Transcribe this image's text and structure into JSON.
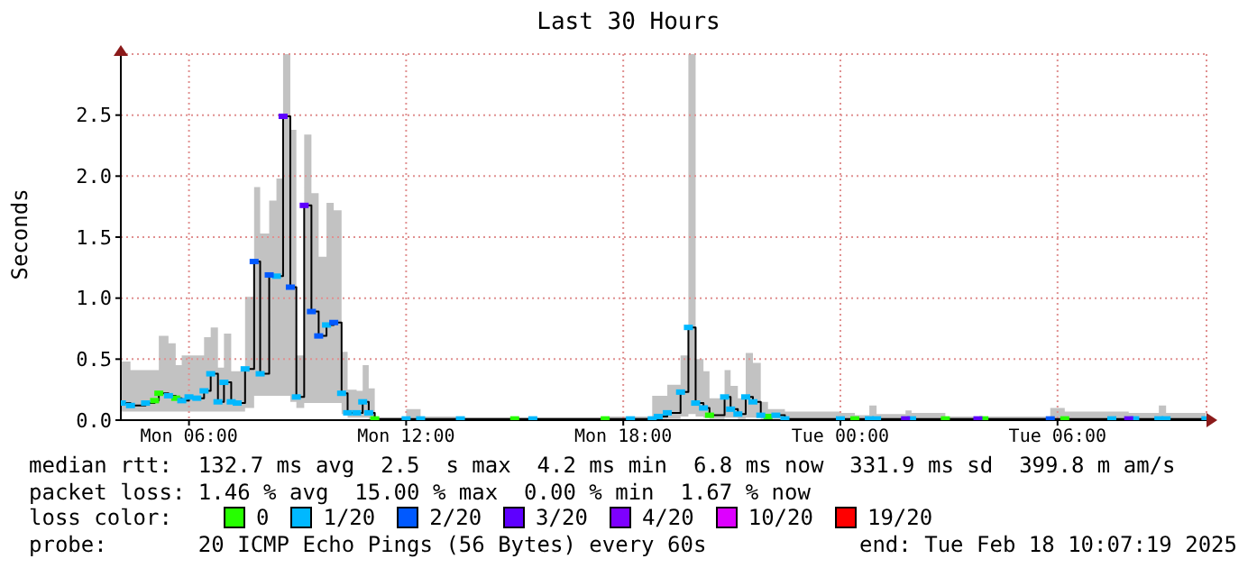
{
  "chart_data": {
    "type": "step",
    "title": "Last 30 Hours",
    "ylabel": "Seconds",
    "x": [
      "2025-02-17T04:08",
      "2025-02-17T04:23",
      "2025-02-17T04:48",
      "2025-02-17T05:03",
      "2025-02-17T05:10",
      "2025-02-17T05:26",
      "2025-02-17T05:38",
      "2025-02-17T05:48",
      "2025-02-17T06:00",
      "2025-02-17T06:13",
      "2025-02-17T06:25",
      "2025-02-17T06:36",
      "2025-02-17T06:48",
      "2025-02-17T06:58",
      "2025-02-17T07:10",
      "2025-02-17T07:20",
      "2025-02-17T07:33",
      "2025-02-17T07:48",
      "2025-02-17T07:58",
      "2025-02-17T08:13",
      "2025-02-17T08:25",
      "2025-02-17T08:36",
      "2025-02-17T08:48",
      "2025-02-17T08:58",
      "2025-02-17T09:11",
      "2025-02-17T09:23",
      "2025-02-17T09:35",
      "2025-02-17T09:48",
      "2025-02-17T10:00",
      "2025-02-17T10:13",
      "2025-02-17T10:23",
      "2025-02-17T10:38",
      "2025-02-17T10:48",
      "2025-02-17T10:58",
      "2025-02-17T11:08",
      "2025-02-17T12:00",
      "2025-02-17T12:24",
      "2025-02-17T13:30",
      "2025-02-17T15:00",
      "2025-02-17T15:30",
      "2025-02-17T17:30",
      "2025-02-17T18:12",
      "2025-02-17T18:48",
      "2025-02-17T18:58",
      "2025-02-17T19:13",
      "2025-02-17T19:35",
      "2025-02-17T19:48",
      "2025-02-17T20:00",
      "2025-02-17T20:13",
      "2025-02-17T20:23",
      "2025-02-17T20:48",
      "2025-02-17T20:58",
      "2025-02-17T21:10",
      "2025-02-17T21:23",
      "2025-02-17T21:35",
      "2025-02-17T21:48",
      "2025-02-17T22:00",
      "2025-02-17T22:13",
      "2025-02-17T22:28",
      "2025-02-18T00:00",
      "2025-02-18T00:24",
      "2025-02-18T00:48",
      "2025-02-18T01:00",
      "2025-02-18T01:48",
      "2025-02-18T01:58",
      "2025-02-18T02:54",
      "2025-02-18T03:48",
      "2025-02-18T03:58",
      "2025-02-18T05:48",
      "2025-02-18T06:12",
      "2025-02-18T07:30",
      "2025-02-18T07:58",
      "2025-02-18T08:08",
      "2025-02-18T08:48",
      "2025-02-18T09:00",
      "2025-02-18T10:06"
    ],
    "series": [
      {
        "color": "#000000",
        "values": [
          0.14,
          0.12,
          0.14,
          0.16,
          0.22,
          0.2,
          0.18,
          0.16,
          0.19,
          0.18,
          0.24,
          0.38,
          0.15,
          0.31,
          0.15,
          0.14,
          0.42,
          1.3,
          0.38,
          1.19,
          1.18,
          2.49,
          1.09,
          0.19,
          1.76,
          0.89,
          0.69,
          0.78,
          0.8,
          0.22,
          0.06,
          0.06,
          0.15,
          0.06,
          0.01,
          0.01,
          0.01,
          0.01,
          0.01,
          0.01,
          0.01,
          0.01,
          0.01,
          0.03,
          0.06,
          0.23,
          0.76,
          0.14,
          0.1,
          0.04,
          0.19,
          0.09,
          0.05,
          0.19,
          0.15,
          0.04,
          0.03,
          0.04,
          0.01,
          0.01,
          0.01,
          0.01,
          0.01,
          0.01,
          0.01,
          0.01,
          0.01,
          0.01,
          0.01,
          0.01,
          0.01,
          0.01,
          0.01,
          0.01,
          0.01,
          0.01
        ],
        "lower": [
          0.07,
          0.07,
          0.07,
          0.07,
          0.07,
          0.07,
          0.07,
          0.07,
          0.07,
          0.07,
          0.07,
          0.07,
          0.07,
          0.07,
          0.07,
          0.07,
          0.1,
          0.2,
          0.2,
          0.2,
          0.2,
          0.2,
          0.15,
          0.1,
          0.14,
          0.14,
          0.14,
          0.14,
          0.14,
          0.05,
          0.02,
          0.02,
          0.02,
          0.01,
          0,
          0,
          0,
          0,
          0,
          0,
          0,
          0,
          0,
          0,
          0.01,
          0.03,
          0.05,
          0.03,
          0.02,
          0.01,
          0.02,
          0.02,
          0.01,
          0.02,
          0.02,
          0.01,
          0.01,
          0.01,
          0,
          0,
          0,
          0,
          0,
          0,
          0,
          0,
          0,
          0,
          0,
          0,
          0,
          0,
          0,
          0,
          0,
          0
        ],
        "upper": [
          0.48,
          0.41,
          0.41,
          0.41,
          0.69,
          0.63,
          0.45,
          0.53,
          0.53,
          0.53,
          0.68,
          0.76,
          0.43,
          0.71,
          0.4,
          0.4,
          1.01,
          1.91,
          1.53,
          1.8,
          1.98,
          3.0,
          2.38,
          0.53,
          2.34,
          1.86,
          1.34,
          1.78,
          1.72,
          0.56,
          0.25,
          0.24,
          0.45,
          0.26,
          0.02,
          0.09,
          0.03,
          0.02,
          0.02,
          0.02,
          0.03,
          0.03,
          0.2,
          0.2,
          0.29,
          0.53,
          3.0,
          0.5,
          0.4,
          0.18,
          0.41,
          0.28,
          0.18,
          0.55,
          0.47,
          0.15,
          0.09,
          0.09,
          0.07,
          0.06,
          0.04,
          0.12,
          0.05,
          0.08,
          0.06,
          0.03,
          0.03,
          0.03,
          0.1,
          0.07,
          0.07,
          0.06,
          0.06,
          0.12,
          0.06,
          0.06
        ]
      },
      {
        "type": "scatter",
        "name": "0",
        "color": "#26ff00",
        "values": [
          null,
          null,
          null,
          0.16,
          0.22,
          null,
          0.18,
          null,
          null,
          null,
          null,
          null,
          null,
          null,
          null,
          null,
          null,
          null,
          null,
          null,
          null,
          null,
          null,
          null,
          null,
          null,
          null,
          null,
          null,
          null,
          null,
          null,
          null,
          null,
          0.01,
          null,
          null,
          null,
          0.01,
          null,
          0.01,
          null,
          null,
          null,
          null,
          null,
          null,
          null,
          null,
          0.04,
          null,
          null,
          null,
          null,
          null,
          null,
          0.03,
          null,
          null,
          null,
          0.01,
          null,
          null,
          null,
          null,
          0.01,
          null,
          0.01,
          null,
          0.01,
          null,
          null,
          null,
          null,
          null,
          null
        ]
      },
      {
        "type": "scatter",
        "name": "1/20",
        "color": "#00b8ff",
        "values": [
          0.14,
          0.12,
          0.14,
          null,
          null,
          0.2,
          null,
          0.16,
          0.19,
          0.18,
          0.24,
          0.38,
          0.15,
          0.31,
          0.15,
          0.14,
          0.42,
          null,
          0.38,
          null,
          1.18,
          null,
          null,
          0.19,
          null,
          null,
          null,
          0.78,
          null,
          0.22,
          0.06,
          0.06,
          0.15,
          0.06,
          null,
          0.01,
          0.01,
          0.01,
          null,
          0.01,
          null,
          0.01,
          0.01,
          0.03,
          0.06,
          0.23,
          0.76,
          0.14,
          0.1,
          null,
          0.19,
          0.09,
          0.05,
          0.19,
          0.15,
          0.04,
          null,
          0.04,
          0.01,
          0.01,
          null,
          0.01,
          0.01,
          null,
          0.01,
          null,
          null,
          null,
          null,
          null,
          0.01,
          null,
          0.01,
          0.01,
          0.01,
          0.01
        ]
      },
      {
        "type": "scatter",
        "name": "2/20",
        "color": "#0059ff",
        "values": [
          null,
          null,
          null,
          null,
          null,
          null,
          null,
          null,
          null,
          null,
          null,
          null,
          null,
          null,
          null,
          null,
          null,
          1.3,
          null,
          1.19,
          null,
          null,
          1.09,
          null,
          null,
          0.89,
          0.69,
          null,
          0.8,
          null,
          null,
          null,
          null,
          null,
          null,
          null,
          null,
          null,
          null,
          null,
          null,
          null,
          null,
          null,
          null,
          null,
          null,
          null,
          null,
          null,
          null,
          null,
          null,
          null,
          null,
          null,
          null,
          null,
          null,
          null,
          null,
          null,
          null,
          null,
          null,
          null,
          null,
          null,
          0.01,
          null,
          null,
          null,
          null,
          null,
          null,
          null
        ]
      },
      {
        "type": "scatter",
        "name": "3/20",
        "color": "#5e00ff",
        "values": [
          null,
          null,
          null,
          null,
          null,
          null,
          null,
          null,
          null,
          null,
          null,
          null,
          null,
          null,
          null,
          null,
          null,
          null,
          null,
          null,
          null,
          2.49,
          null,
          null,
          1.76,
          null,
          null,
          null,
          null,
          null,
          null,
          null,
          null,
          null,
          null,
          null,
          null,
          null,
          null,
          null,
          null,
          null,
          null,
          null,
          null,
          null,
          null,
          null,
          null,
          null,
          null,
          null,
          null,
          null,
          null,
          null,
          null,
          null,
          null,
          null,
          null,
          null,
          null,
          0.01,
          null,
          null,
          0.01,
          null,
          null,
          null,
          null,
          0.01,
          null,
          null,
          null,
          null
        ]
      },
      {
        "type": "scatter",
        "name": "4/20",
        "color": "#7e00ff",
        "values": [
          null,
          null,
          null,
          null,
          null,
          null,
          null,
          null,
          null,
          null,
          null,
          null,
          null,
          null,
          null,
          null,
          null,
          null,
          null,
          null,
          null,
          null,
          null,
          null,
          null,
          null,
          null,
          null,
          null,
          null,
          null,
          null,
          null,
          null,
          null,
          null,
          null,
          null,
          null,
          null,
          null,
          null,
          null,
          null,
          null,
          null,
          null,
          null,
          null,
          null,
          null,
          null,
          null,
          null,
          null,
          null,
          null,
          null,
          null,
          null,
          null,
          null,
          null,
          null,
          null,
          null,
          null,
          null,
          null,
          null,
          null,
          null,
          null,
          null,
          null,
          null
        ]
      },
      {
        "type": "scatter",
        "name": "10/20",
        "color": "#dd00ff",
        "values": [
          null,
          null,
          null,
          null,
          null,
          null,
          null,
          null,
          null,
          null,
          null,
          null,
          null,
          null,
          null,
          null,
          null,
          null,
          null,
          null,
          null,
          null,
          null,
          null,
          null,
          null,
          null,
          null,
          null,
          null,
          null,
          null,
          null,
          null,
          null,
          null,
          null,
          null,
          null,
          null,
          null,
          null,
          null,
          null,
          null,
          null,
          null,
          null,
          null,
          null,
          null,
          null,
          null,
          null,
          null,
          null,
          null,
          null,
          null,
          null,
          null,
          null,
          null,
          null,
          null,
          null,
          null,
          null,
          null,
          null,
          null,
          null,
          null,
          null,
          null,
          null
        ]
      },
      {
        "type": "scatter",
        "name": "19/20",
        "color": "#ff0000",
        "values": [
          null,
          null,
          null,
          null,
          null,
          null,
          null,
          null,
          null,
          null,
          null,
          null,
          null,
          null,
          null,
          null,
          null,
          null,
          null,
          null,
          null,
          null,
          null,
          null,
          null,
          null,
          null,
          null,
          null,
          null,
          null,
          null,
          null,
          null,
          null,
          null,
          null,
          null,
          null,
          null,
          null,
          null,
          null,
          null,
          null,
          null,
          null,
          null,
          null,
          null,
          null,
          null,
          null,
          null,
          null,
          null,
          null,
          null,
          null,
          null,
          null,
          null,
          null,
          null,
          null,
          null,
          null,
          null,
          null,
          null,
          null,
          null,
          null,
          null,
          null,
          null
        ]
      }
    ],
    "xlim": [
      "2025-02-17T04:07",
      "2025-02-18T10:07"
    ],
    "xticks": [
      {
        "value": "2025-02-17T06:00",
        "label": "Mon 06:00"
      },
      {
        "value": "2025-02-17T12:00",
        "label": "Mon 12:00"
      },
      {
        "value": "2025-02-17T18:00",
        "label": "Mon 18:00"
      },
      {
        "value": "2025-02-18T00:00",
        "label": "Tue 00:00"
      },
      {
        "value": "2025-02-18T06:00",
        "label": "Tue 06:00"
      }
    ],
    "ylim": [
      0,
      3
    ],
    "yticks": [
      {
        "value": 0,
        "label": "0.0"
      },
      0.5,
      {
        "value": 1,
        "label": "1.0"
      },
      1.5,
      {
        "value": 2,
        "label": "2.0"
      },
      2.5
    ],
    "grid": true,
    "legend": "bottom",
    "legend_title": "loss color:",
    "annotations": [
      "median rtt:  132.7 ms avg  2.5  s max  4.2 ms min  6.8 ms now  331.9 ms sd  399.8 m am/s",
      "packet loss: 1.46 % avg  15.00 % max  0.00 % min  1.67 % now",
      "probe:       20 ICMP Echo Pings (56 Bytes) every 60s",
      "end: Tue Feb 18 10:07:19 2025"
    ]
  }
}
